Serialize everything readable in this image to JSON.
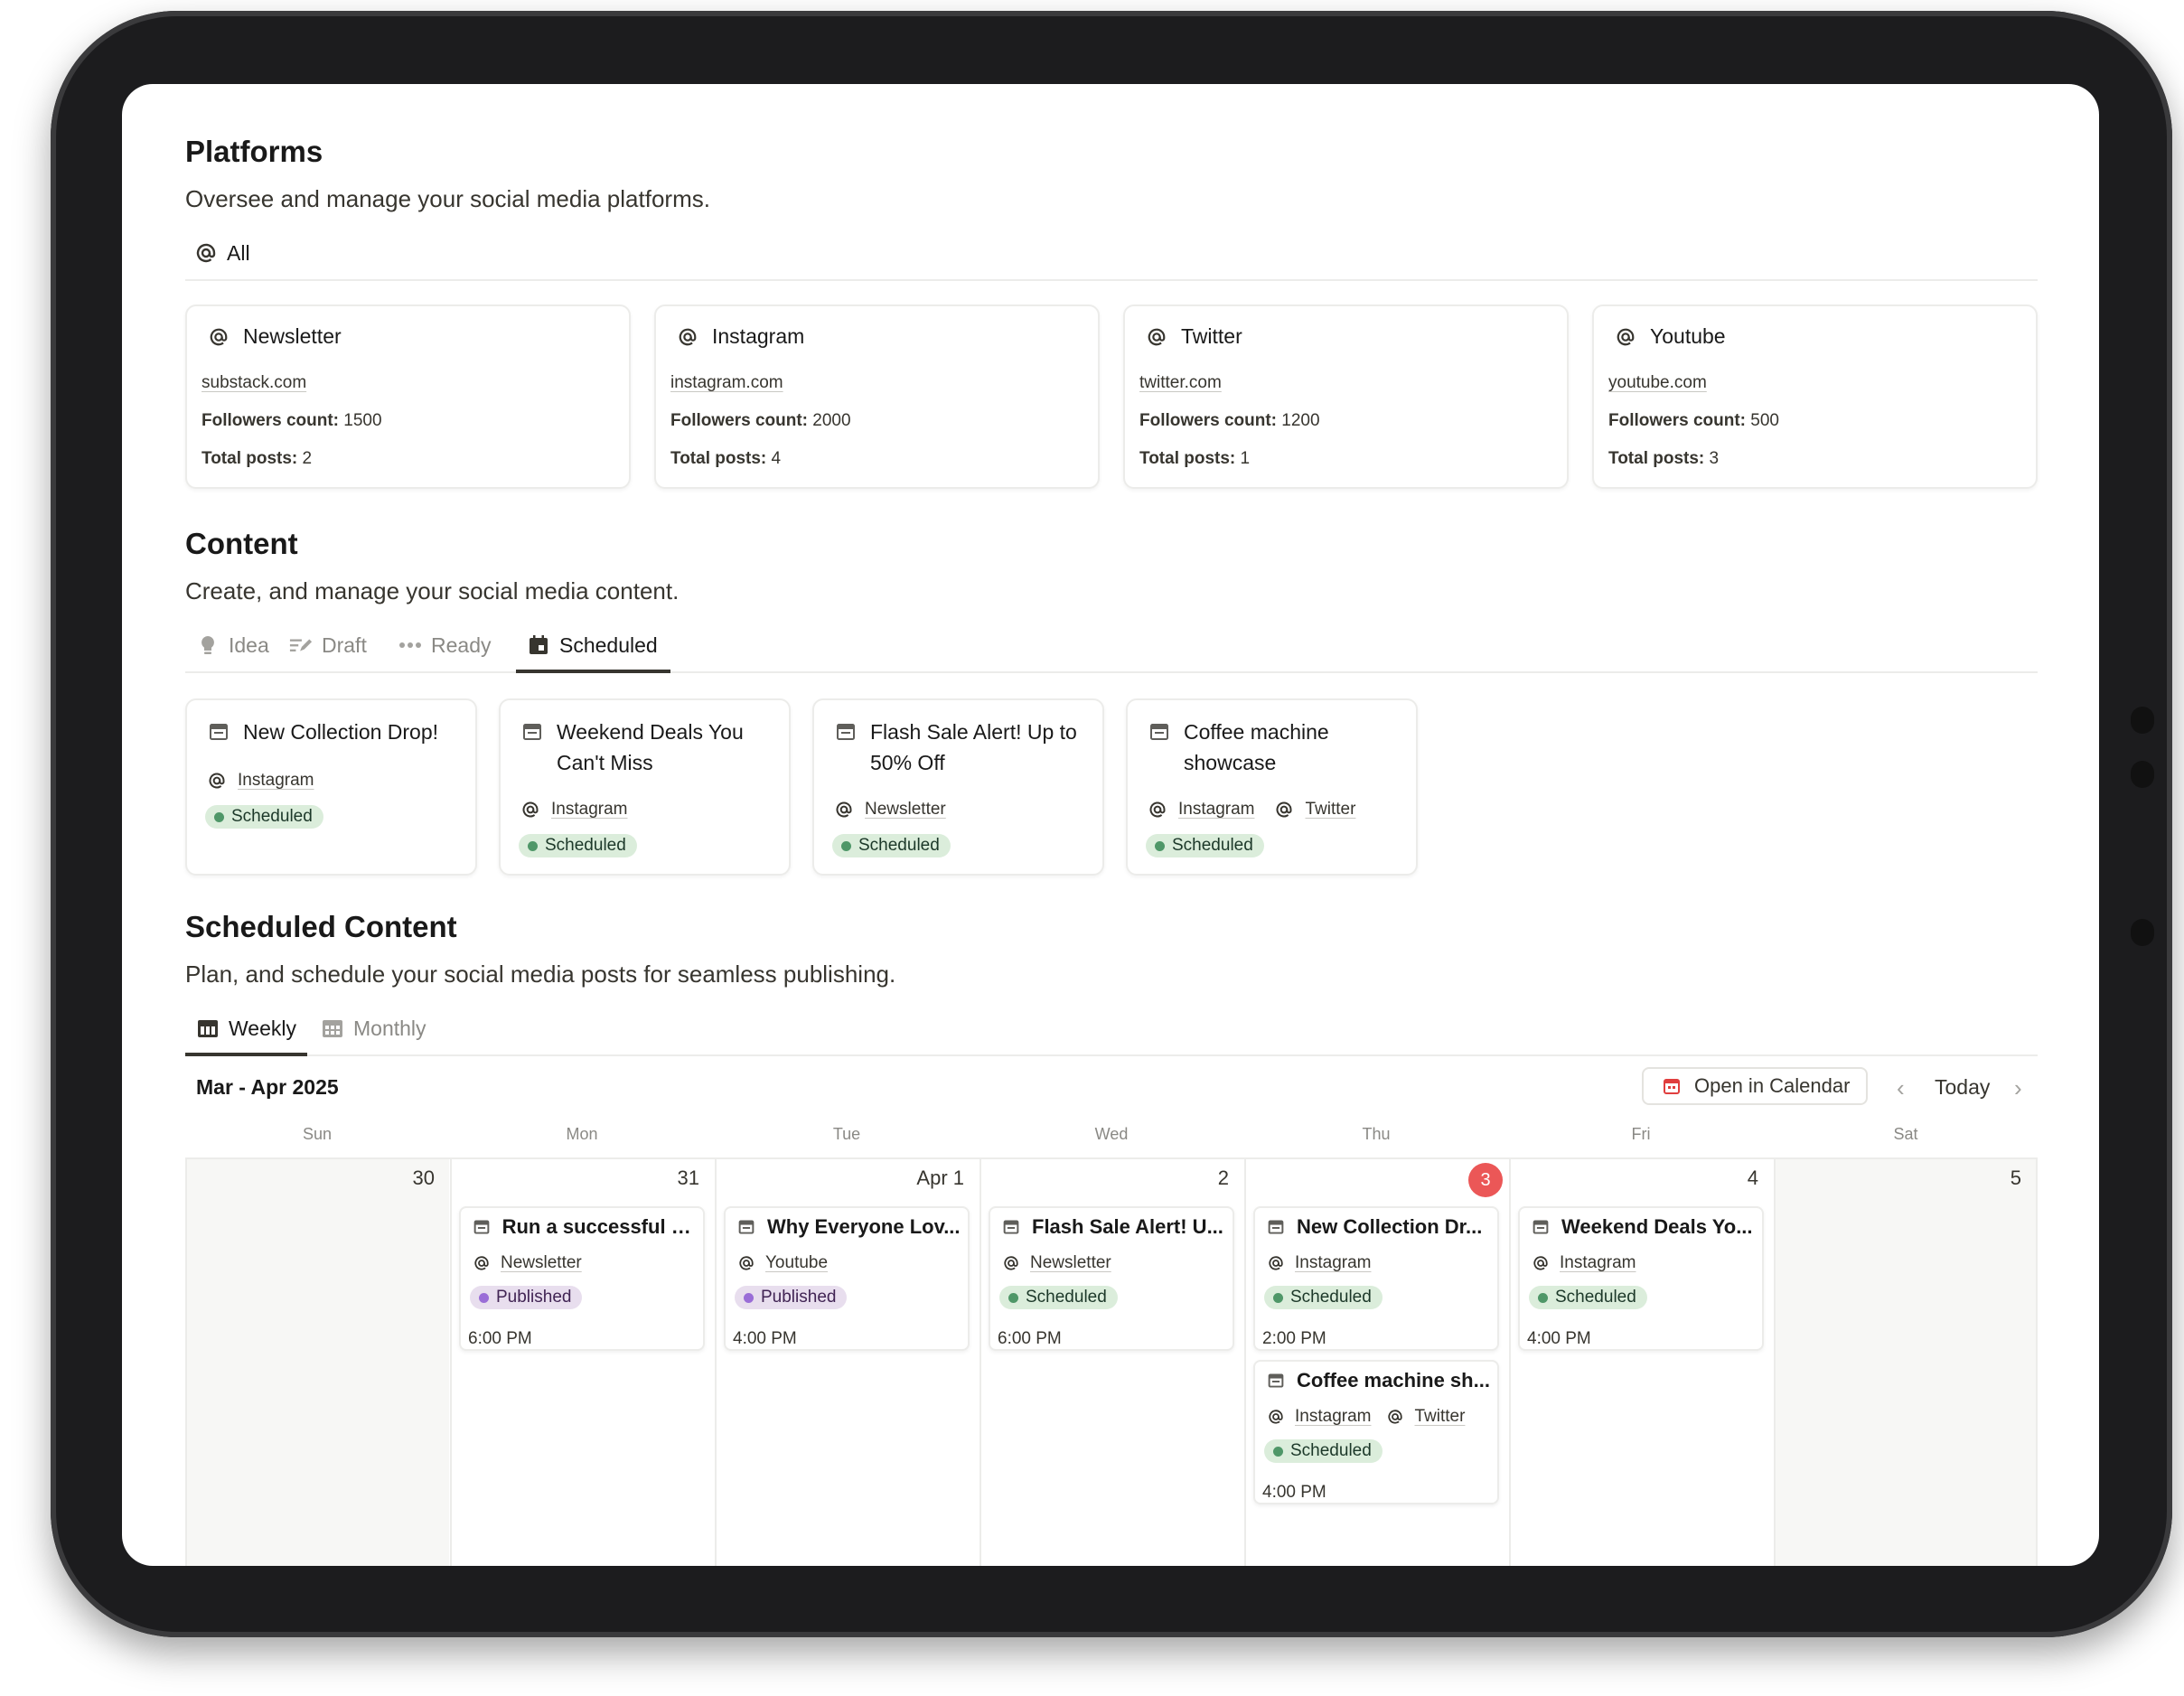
{
  "platforms": {
    "title": "Platforms",
    "description": "Oversee and manage your social media platforms.",
    "tab_all": "All",
    "followers_label": "Followers count:",
    "posts_label": "Total posts:",
    "cards": [
      {
        "name": "Newsletter",
        "url": "substack.com",
        "followers": "1500",
        "posts": "2"
      },
      {
        "name": "Instagram",
        "url": "instagram.com",
        "followers": "2000",
        "posts": "4"
      },
      {
        "name": "Twitter",
        "url": "twitter.com",
        "followers": "1200",
        "posts": "1"
      },
      {
        "name": "Youtube",
        "url": "youtube.com",
        "followers": "500",
        "posts": "3"
      }
    ]
  },
  "content": {
    "title": "Content",
    "description": "Create, and manage your social media content.",
    "tabs": {
      "idea": "Idea",
      "draft": "Draft",
      "ready": "Ready",
      "scheduled": "Scheduled"
    },
    "cards": [
      {
        "title_l1": "New Collection Drop!",
        "title_l2": "",
        "platforms": [
          "Instagram"
        ],
        "status": "Scheduled"
      },
      {
        "title_l1": "Weekend Deals You",
        "title_l2": "Can't Miss",
        "platforms": [
          "Instagram"
        ],
        "status": "Scheduled"
      },
      {
        "title_l1": "Flash Sale Alert! Up to",
        "title_l2": "50% Off",
        "platforms": [
          "Newsletter"
        ],
        "status": "Scheduled"
      },
      {
        "title_l1": "Coffee machine",
        "title_l2": "showcase",
        "platforms": [
          "Instagram",
          "Twitter"
        ],
        "status": "Scheduled"
      }
    ]
  },
  "schedule": {
    "title": "Scheduled Content",
    "description": "Plan, and schedule your social media posts for seamless publishing.",
    "tabs": {
      "weekly": "Weekly",
      "monthly": "Monthly"
    },
    "range": "Mar - Apr 2025",
    "open_calendar": "Open in Calendar",
    "today": "Today",
    "weekdays": [
      "Sun",
      "Mon",
      "Tue",
      "Wed",
      "Thu",
      "Fri",
      "Sat"
    ],
    "days": [
      "30",
      "31",
      "Apr 1",
      "2",
      "3",
      "4",
      "5"
    ],
    "events": {
      "mon": {
        "title": "Run a successful e...",
        "platform": "Newsletter",
        "status": "Published",
        "time": "6:00 PM"
      },
      "tue": {
        "title": "Why Everyone Lov...",
        "platform": "Youtube",
        "status": "Published",
        "time": "4:00 PM"
      },
      "wed": {
        "title": "Flash Sale Alert! U...",
        "platform": "Newsletter",
        "status": "Scheduled",
        "time": "6:00 PM"
      },
      "thu1": {
        "title": "New Collection Dr...",
        "platform": "Instagram",
        "status": "Scheduled",
        "time": "2:00 PM"
      },
      "thu2": {
        "title": "Coffee machine sh...",
        "platform": "Instagram",
        "platform2": "Twitter",
        "status": "Scheduled",
        "time": "4:00 PM"
      },
      "fri": {
        "title": "Weekend Deals Yo...",
        "platform": "Instagram",
        "status": "Scheduled",
        "time": "4:00 PM"
      }
    }
  },
  "colors": {
    "scheduled_dot": "#4f9768",
    "published_dot": "#9a6dd7",
    "today_badge": "#eb5757",
    "calendar_icon": "#e03e3e"
  }
}
